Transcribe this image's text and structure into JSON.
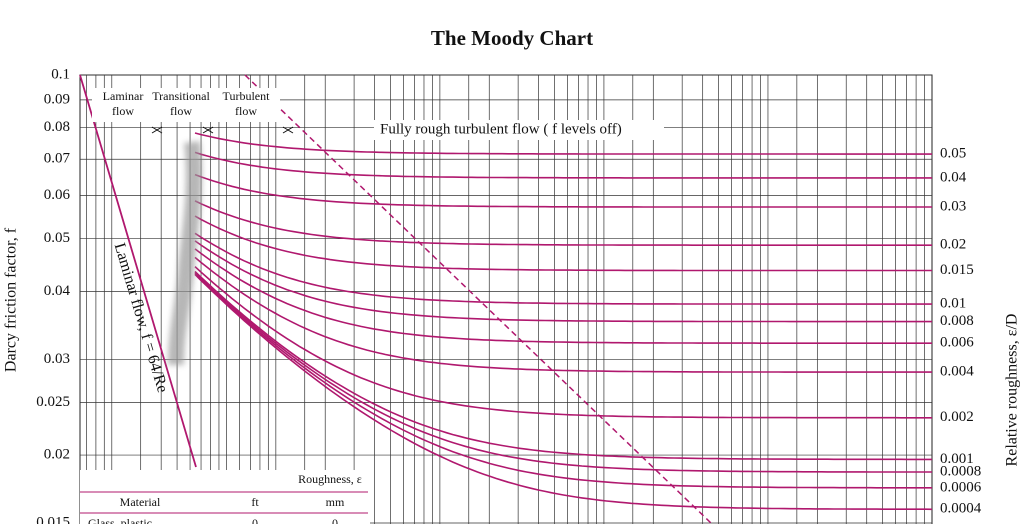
{
  "chart_data": {
    "type": "moody",
    "title": "The Moody Chart",
    "y_label": "Darcy friction factor, f",
    "y2_label": "Relative roughness, ε/D",
    "log_scale": true,
    "grid": true,
    "color": "#b0186e",
    "xlim": [
      640,
      100000000
    ],
    "ylim": [
      0.015,
      0.1
    ],
    "yticks": [
      0.1,
      0.09,
      0.08,
      0.07,
      0.06,
      0.05,
      0.04,
      0.03,
      0.025,
      0.02,
      0.015
    ],
    "roughness": [
      0.05,
      0.04,
      0.03,
      0.02,
      0.015,
      0.01,
      0.008,
      0.006,
      0.004,
      0.002,
      0.001,
      0.0008,
      0.0006,
      0.0004
    ],
    "regions": [
      [
        "Laminar",
        "flow"
      ],
      [
        "Transitional",
        "flow"
      ],
      [
        "Turbulent",
        "flow"
      ]
    ],
    "rough_note": "Fully rough turbulent flow ( f levels off)",
    "laminar_note": "Laminar flow, f = 64/Re",
    "legend_table": {
      "title": "Roughness, ε",
      "columns": [
        "Material",
        "ft",
        "mm"
      ],
      "rows": [
        [
          "Glass, plastic",
          "0",
          "0"
        ]
      ]
    }
  }
}
